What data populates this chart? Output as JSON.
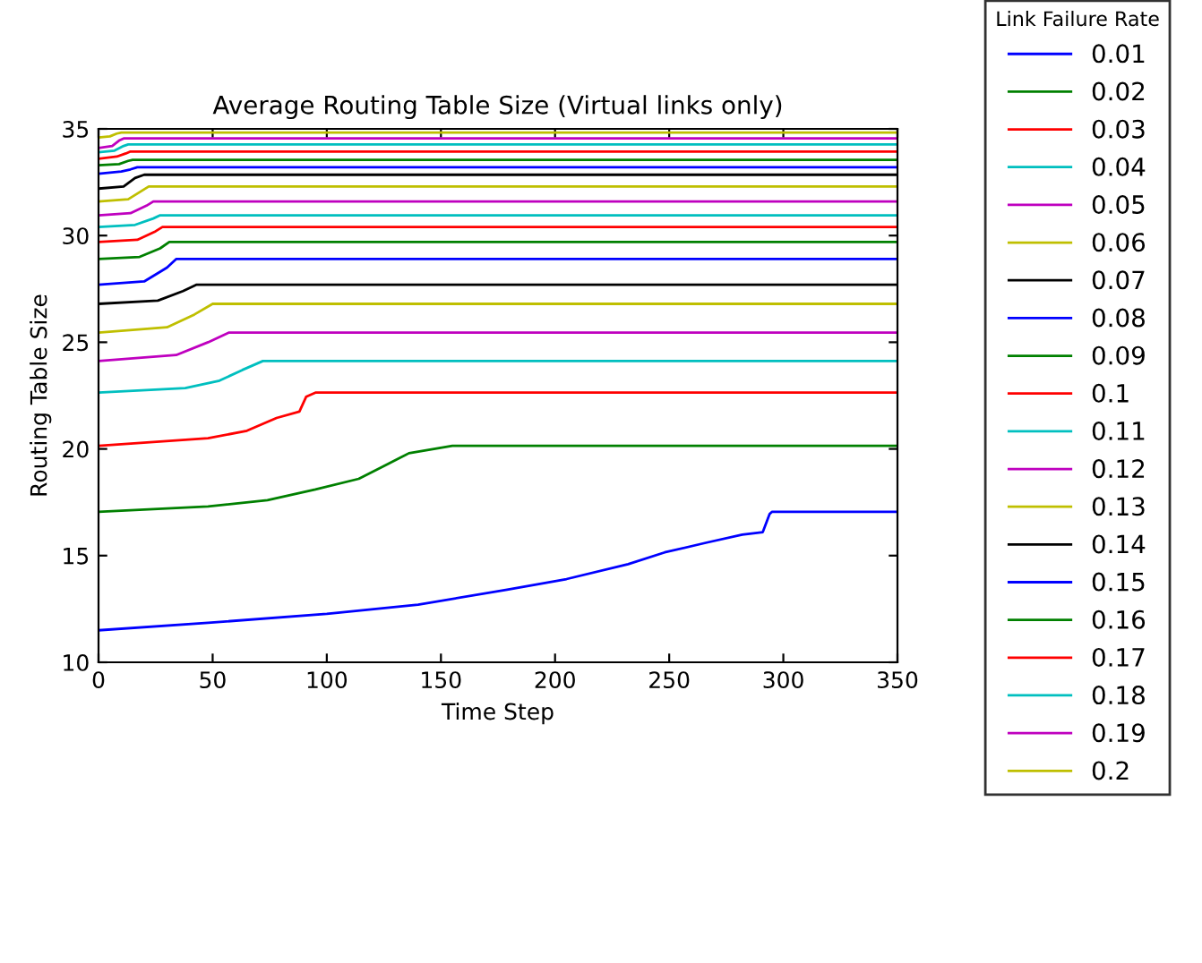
{
  "chart_data": {
    "type": "line",
    "title": "Average Routing Table Size (Virtual links only)",
    "xlabel": "Time Step",
    "ylabel": "Routing Table Size",
    "legend_title": "Link Failure Rate",
    "legend": "right",
    "grid": false,
    "line_style": "solid",
    "xlim": [
      0,
      350
    ],
    "ylim": [
      10,
      35
    ],
    "xticks": [
      0,
      50,
      100,
      150,
      200,
      250,
      300,
      350
    ],
    "yticks": [
      10,
      15,
      20,
      25,
      30,
      35
    ],
    "series": [
      {
        "name": "0.01",
        "color": "#0000ff",
        "x": [
          0,
          48,
          100,
          140,
          179,
          205,
          232,
          248,
          266,
          282,
          291,
          294,
          295,
          350
        ],
        "values": [
          11.5,
          11.85,
          12.27,
          12.7,
          13.4,
          13.9,
          14.6,
          15.15,
          15.6,
          15.98,
          16.1,
          16.95,
          17.05,
          17.05
        ]
      },
      {
        "name": "0.02",
        "color": "#008000",
        "x": [
          0,
          48,
          74,
          95,
          114,
          125,
          136,
          155,
          350
        ],
        "values": [
          17.05,
          17.3,
          17.6,
          18.1,
          18.6,
          19.2,
          19.8,
          20.15,
          20.15
        ]
      },
      {
        "name": "0.03",
        "color": "#ff0000",
        "x": [
          0,
          48,
          65,
          78,
          88,
          91,
          95,
          350
        ],
        "values": [
          20.15,
          20.5,
          20.85,
          21.45,
          21.75,
          22.45,
          22.64,
          22.64
        ]
      },
      {
        "name": "0.04",
        "color": "#00bfbf",
        "x": [
          0,
          38,
          53,
          63,
          72,
          350
        ],
        "values": [
          22.64,
          22.85,
          23.2,
          23.7,
          24.12,
          24.12
        ]
      },
      {
        "name": "0.05",
        "color": "#bf00bf",
        "x": [
          0,
          34,
          48,
          57,
          350
        ],
        "values": [
          24.12,
          24.4,
          25.0,
          25.45,
          25.45
        ]
      },
      {
        "name": "0.06",
        "color": "#bfbf00",
        "x": [
          0,
          30,
          42,
          50,
          350
        ],
        "values": [
          25.45,
          25.7,
          26.3,
          26.8,
          26.8
        ]
      },
      {
        "name": "0.07",
        "color": "#000000",
        "x": [
          0,
          26,
          37,
          43,
          350
        ],
        "values": [
          26.8,
          26.95,
          27.4,
          27.7,
          27.7
        ]
      },
      {
        "name": "0.08",
        "color": "#0000ff",
        "x": [
          0,
          20,
          30,
          34,
          350
        ],
        "values": [
          27.7,
          27.85,
          28.5,
          28.9,
          28.9
        ]
      },
      {
        "name": "0.09",
        "color": "#008000",
        "x": [
          0,
          18,
          27,
          31,
          350
        ],
        "values": [
          28.9,
          29.0,
          29.4,
          29.7,
          29.7
        ]
      },
      {
        "name": "0.1",
        "color": "#ff0000",
        "x": [
          0,
          17,
          25,
          28,
          350
        ],
        "values": [
          29.7,
          29.8,
          30.2,
          30.4,
          30.4
        ]
      },
      {
        "name": "0.11",
        "color": "#00bfbf",
        "x": [
          0,
          16,
          24,
          27,
          350
        ],
        "values": [
          30.4,
          30.5,
          30.8,
          30.95,
          30.95
        ]
      },
      {
        "name": "0.12",
        "color": "#bf00bf",
        "x": [
          0,
          14,
          21,
          24,
          350
        ],
        "values": [
          30.95,
          31.05,
          31.4,
          31.6,
          31.6
        ]
      },
      {
        "name": "0.13",
        "color": "#bfbf00",
        "x": [
          0,
          13,
          19,
          22,
          350
        ],
        "values": [
          31.6,
          31.7,
          32.1,
          32.3,
          32.3
        ]
      },
      {
        "name": "0.14",
        "color": "#000000",
        "x": [
          0,
          11,
          16,
          20,
          350
        ],
        "values": [
          32.2,
          32.3,
          32.7,
          32.85,
          32.85
        ]
      },
      {
        "name": "0.15",
        "color": "#0000ff",
        "x": [
          0,
          10,
          14,
          17,
          350
        ],
        "values": [
          32.9,
          33.0,
          33.1,
          33.2,
          33.2
        ]
      },
      {
        "name": "0.16",
        "color": "#008000",
        "x": [
          0,
          9,
          13,
          15,
          350
        ],
        "values": [
          33.3,
          33.35,
          33.5,
          33.55,
          33.55
        ]
      },
      {
        "name": "0.17",
        "color": "#ff0000",
        "x": [
          0,
          8,
          12,
          14,
          350
        ],
        "values": [
          33.6,
          33.7,
          33.85,
          33.94,
          33.94
        ]
      },
      {
        "name": "0.18",
        "color": "#00bfbf",
        "x": [
          0,
          7,
          11,
          13,
          350
        ],
        "values": [
          33.9,
          33.98,
          34.2,
          34.27,
          34.27
        ]
      },
      {
        "name": "0.19",
        "color": "#bf00bf",
        "x": [
          0,
          6,
          9,
          11,
          350
        ],
        "values": [
          34.1,
          34.2,
          34.45,
          34.55,
          34.55
        ]
      },
      {
        "name": "0.2",
        "color": "#bfbf00",
        "x": [
          0,
          5,
          8,
          10,
          350
        ],
        "values": [
          34.6,
          34.65,
          34.78,
          34.83,
          34.83
        ]
      }
    ]
  }
}
